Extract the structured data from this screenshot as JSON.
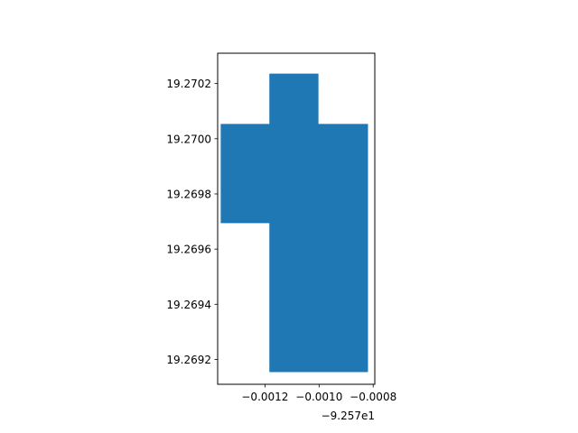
{
  "chart_data": {
    "type": "area",
    "title": "",
    "xlabel": "",
    "ylabel": "",
    "x_offset_label": "−9.257e1",
    "xlim": [
      -92.571375,
      -92.570794
    ],
    "ylim": [
      19.26911,
      19.27031
    ],
    "x_ticks": [
      {
        "value": -92.5712,
        "label": "−0.0012"
      },
      {
        "value": -92.571,
        "label": "−0.0010"
      },
      {
        "value": -92.5708,
        "label": "−0.0008"
      }
    ],
    "y_ticks": [
      {
        "value": 19.2692,
        "label": "19.2692"
      },
      {
        "value": 19.2694,
        "label": "19.2694"
      },
      {
        "value": 19.2696,
        "label": "19.2696"
      },
      {
        "value": 19.2698,
        "label": "19.2698"
      },
      {
        "value": 19.27,
        "label": "19.2700"
      },
      {
        "value": 19.2702,
        "label": "19.2702"
      }
    ],
    "polygon": {
      "color": "#1f77b4",
      "vertices": [
        [
          -92.571183,
          19.270235
        ],
        [
          -92.571003,
          19.270235
        ],
        [
          -92.571003,
          19.270053
        ],
        [
          -92.57082,
          19.270053
        ],
        [
          -92.57082,
          19.269155
        ],
        [
          -92.571183,
          19.269155
        ],
        [
          -92.571183,
          19.269695
        ],
        [
          -92.571363,
          19.269695
        ],
        [
          -92.571363,
          19.270053
        ],
        [
          -92.571183,
          19.270053
        ]
      ]
    },
    "grid": false,
    "legend": "none"
  }
}
